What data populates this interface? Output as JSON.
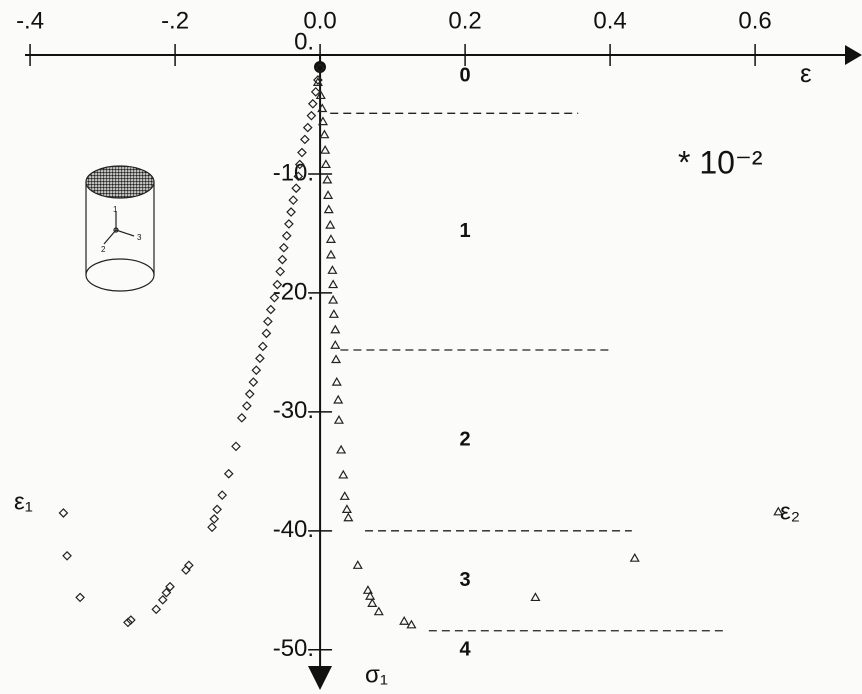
{
  "chart_data": {
    "type": "scatter",
    "x_label": "ε",
    "y_label": "σ₁",
    "x_multiplier": "* 10⁻²",
    "xlim": [
      -0.407,
      0.724
    ],
    "ylim": [
      -51.7,
      0
    ],
    "xticks": [
      {
        "value": -0.4,
        "label": "-.4"
      },
      {
        "value": -0.2,
        "label": "-.2"
      },
      {
        "value": 0,
        "label": "0.0"
      },
      {
        "value": 0.2,
        "label": "0.2"
      },
      {
        "value": 0.4,
        "label": "0.4"
      },
      {
        "value": 0.6,
        "label": "0.6"
      }
    ],
    "yticks": [
      {
        "value": 0,
        "label": "0."
      },
      {
        "value": -10,
        "label": "-10."
      },
      {
        "value": -20,
        "label": "-20."
      },
      {
        "value": -30,
        "label": "-30."
      },
      {
        "value": -40,
        "label": "-40."
      },
      {
        "value": -50,
        "label": "-50."
      }
    ],
    "zones": [
      "0",
      "1",
      "2",
      "3",
      "4"
    ],
    "zone_boundaries": [
      {
        "value": -4.9,
        "x_range": [
          0.014,
          0.356
        ]
      },
      {
        "value": -24.8,
        "x_range": [
          0.028,
          0.4
        ]
      },
      {
        "value": -40,
        "x_range": [
          0.062,
          0.43
        ]
      },
      {
        "value": -48.4,
        "x_range": [
          0.15,
          0.56
        ]
      }
    ],
    "inset_labels": [
      "1",
      "2",
      "3"
    ],
    "series": [
      {
        "name": "ε₁",
        "marker": "diamond",
        "color": "#222222",
        "x": [
          0,
          -0.003,
          -0.006,
          -0.01,
          -0.012,
          -0.017,
          -0.021,
          -0.025,
          -0.028,
          -0.03,
          -0.033,
          -0.037,
          -0.04,
          -0.043,
          -0.046,
          -0.05,
          -0.052,
          -0.055,
          -0.059,
          -0.063,
          -0.068,
          -0.072,
          -0.074,
          -0.079,
          -0.083,
          -0.088,
          -0.092,
          -0.097,
          -0.101,
          -0.108,
          -0.116,
          -0.126,
          -0.135,
          -0.142,
          -0.146,
          -0.149,
          -0.181,
          -0.185,
          -0.207,
          -0.212,
          -0.217,
          -0.226,
          -0.261,
          -0.265,
          -0.331,
          -0.349,
          -0.354
        ],
        "values": [
          -1.1,
          -2.1,
          -3.1,
          -4.1,
          -5.1,
          -6.1,
          -7.1,
          -8.2,
          -9.2,
          -10.2,
          -11.2,
          -12.2,
          -13.2,
          -14.2,
          -15.2,
          -16.2,
          -17.2,
          -18.2,
          -19.3,
          -20.4,
          -21.4,
          -22.4,
          -23.4,
          -24.5,
          -25.5,
          -26.5,
          -27.5,
          -28.5,
          -29.5,
          -30.5,
          -32.9,
          -35.2,
          -37.0,
          -38.2,
          -39.0,
          -39.7,
          -42.9,
          -43.3,
          -44.7,
          -45.2,
          -45.8,
          -46.6,
          -47.5,
          -47.7,
          -45.6,
          -42.1,
          -38.5
        ]
      },
      {
        "name": "ε₂",
        "marker": "triangle",
        "color": "#222222",
        "x": [
          -0.003,
          0.001,
          0.003,
          0.004,
          0.006,
          0.007,
          0.008,
          0.01,
          0.011,
          0.012,
          0.014,
          0.015,
          0.015,
          0.017,
          0.018,
          0.018,
          0.019,
          0.021,
          0.021,
          0.022,
          0.023,
          0.025,
          0.026,
          0.029,
          0.032,
          0.034,
          0.037,
          0.039,
          0.052,
          0.066,
          0.069,
          0.072,
          0.081,
          0.116,
          0.126,
          0.297,
          0.434,
          0.632
        ],
        "values": [
          -2.3,
          -3.4,
          -4.5,
          -5.6,
          -6.7,
          -8.0,
          -9.2,
          -10.5,
          -11.8,
          -13.0,
          -14.3,
          -15.5,
          -16.8,
          -18.1,
          -19.3,
          -20.6,
          -21.8,
          -23.1,
          -24.4,
          -25.6,
          -27.5,
          -29.0,
          -30.7,
          -33.2,
          -35.3,
          -37.1,
          -38.2,
          -38.9,
          -42.9,
          -45.0,
          -45.5,
          -46.1,
          -46.8,
          -47.6,
          -47.9,
          -45.6,
          -42.3,
          -38.4
        ]
      }
    ]
  }
}
